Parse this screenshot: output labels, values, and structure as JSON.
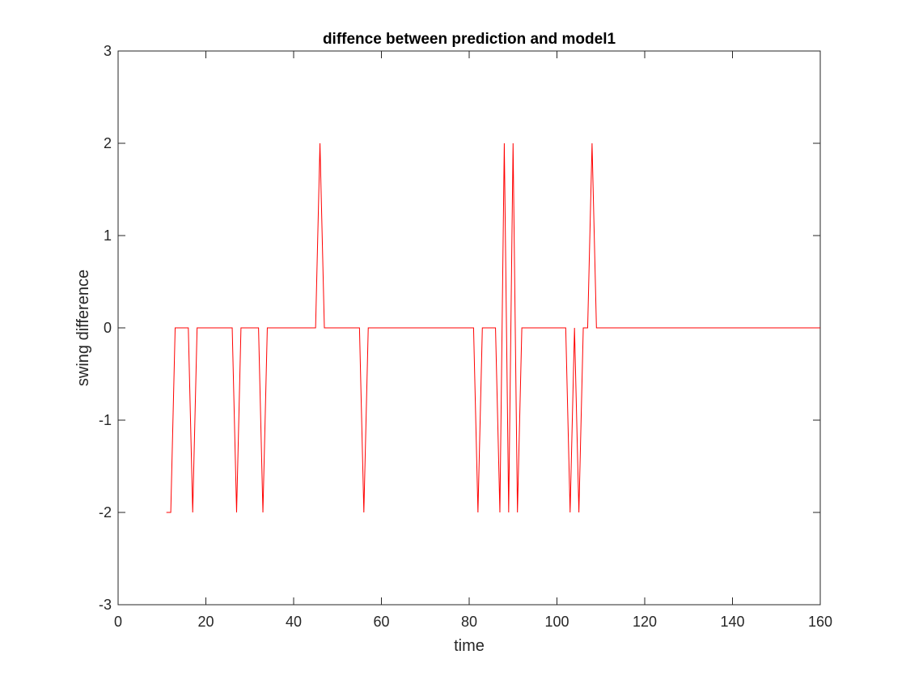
{
  "chart_data": {
    "type": "line",
    "title": "diffence between prediction and model1",
    "xlabel": "time",
    "ylabel": "swing difference",
    "xlim": [
      0,
      160
    ],
    "ylim": [
      -3,
      3
    ],
    "xticks": [
      0,
      20,
      40,
      60,
      80,
      100,
      120,
      140,
      160
    ],
    "yticks": [
      -3,
      -2,
      -1,
      0,
      1,
      2,
      3
    ],
    "xtick_labels": [
      "0",
      "20",
      "40",
      "60",
      "80",
      "100",
      "120",
      "140",
      "160"
    ],
    "ytick_labels": [
      "-3",
      "-2",
      "-1",
      "0",
      "1",
      "2",
      "3"
    ],
    "grid": false,
    "legend": "none",
    "series": [
      {
        "color": "#ff0000",
        "x": [
          11,
          12,
          13,
          14,
          15,
          16,
          17,
          18,
          19,
          20,
          21,
          22,
          23,
          24,
          25,
          26,
          27,
          28,
          29,
          30,
          31,
          32,
          33,
          34,
          35,
          36,
          37,
          38,
          39,
          40,
          41,
          42,
          43,
          44,
          45,
          46,
          47,
          48,
          49,
          50,
          51,
          52,
          53,
          54,
          55,
          56,
          57,
          58,
          59,
          60,
          61,
          62,
          63,
          64,
          65,
          66,
          67,
          68,
          69,
          70,
          71,
          72,
          73,
          74,
          75,
          76,
          77,
          78,
          79,
          80,
          81,
          82,
          83,
          84,
          85,
          86,
          87,
          88,
          89,
          90,
          91,
          92,
          93,
          94,
          95,
          96,
          97,
          98,
          99,
          100,
          101,
          102,
          103,
          104,
          105,
          106,
          107,
          108,
          109,
          110,
          160
        ],
        "y": [
          -2,
          -2,
          0,
          0,
          0,
          0,
          -2,
          0,
          0,
          0,
          0,
          0,
          0,
          0,
          0,
          0,
          -2,
          0,
          0,
          0,
          0,
          0,
          -2,
          0,
          0,
          0,
          0,
          0,
          0,
          0,
          0,
          0,
          0,
          0,
          0,
          2,
          0,
          0,
          0,
          0,
          0,
          0,
          0,
          0,
          0,
          -2,
          0,
          0,
          0,
          0,
          0,
          0,
          0,
          0,
          0,
          0,
          0,
          0,
          0,
          0,
          0,
          0,
          0,
          0,
          0,
          0,
          0,
          0,
          0,
          0,
          0,
          -2,
          0,
          0,
          0,
          0,
          -2,
          2,
          -2,
          2,
          -2,
          0,
          0,
          0,
          0,
          0,
          0,
          0,
          0,
          0,
          0,
          0,
          -2,
          0,
          -2,
          0,
          0,
          2,
          0,
          0,
          0
        ]
      }
    ]
  }
}
